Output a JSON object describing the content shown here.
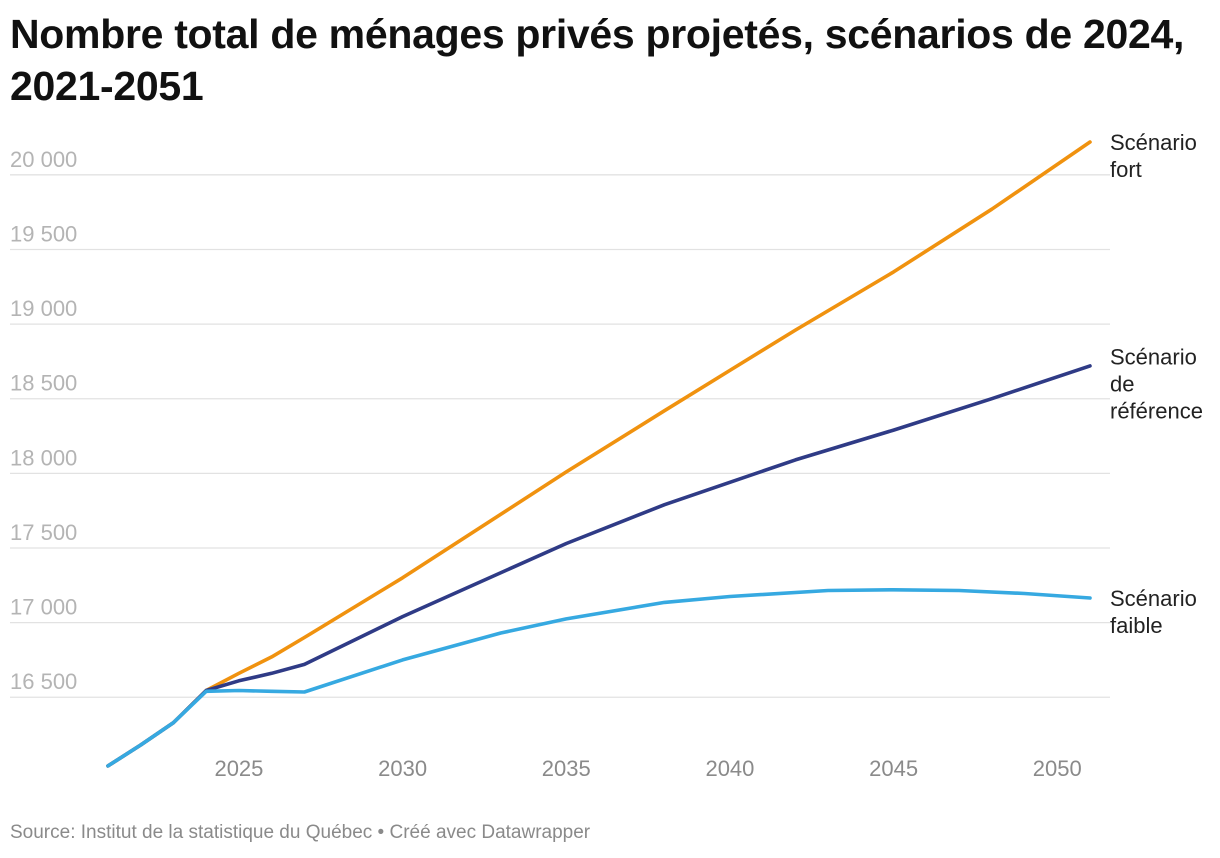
{
  "title": "Nombre total de ménages privés projetés, scénarios de 2024, 2021-2051",
  "source": "Source: Institut de la statistique du Québec • Créé avec Datawrapper",
  "chart_data": {
    "type": "line",
    "title": "Nombre total de ménages privés projetés, scénarios de 2024, 2021-2051",
    "xlabel": "",
    "ylabel": "",
    "xlim": [
      2021,
      2051
    ],
    "ylim": [
      16200,
      20220
    ],
    "grid": true,
    "x_ticks": [
      2025,
      2030,
      2035,
      2040,
      2045,
      2050
    ],
    "y_ticks": [
      16500,
      17000,
      17500,
      18000,
      18500,
      19000,
      19500,
      20000
    ],
    "x_tick_labels": [
      "2025",
      "2030",
      "2035",
      "2040",
      "2045",
      "2050"
    ],
    "y_tick_labels": [
      "16 500",
      "17 000",
      "17 500",
      "18 000",
      "18 500",
      "19 000",
      "19 500",
      "20 000"
    ],
    "series": [
      {
        "name": "Scénario fort",
        "label_lines": [
          "Scénario",
          "fort"
        ],
        "color": "#f0920f",
        "x": [
          2021,
          2022,
          2023,
          2024,
          2025,
          2026,
          2027,
          2030,
          2035,
          2038,
          2040,
          2042,
          2045,
          2048,
          2051
        ],
        "y": [
          16040,
          16180,
          16330,
          16545,
          16660,
          16770,
          16900,
          17300,
          18010,
          18420,
          18690,
          18960,
          19350,
          19770,
          20220
        ]
      },
      {
        "name": "Scénario de référence",
        "label_lines": [
          "Scénario",
          "de",
          "référence"
        ],
        "color": "#2f3b86",
        "x": [
          2021,
          2022,
          2023,
          2024,
          2025,
          2026,
          2027,
          2030,
          2035,
          2038,
          2040,
          2042,
          2045,
          2048,
          2051
        ],
        "y": [
          16040,
          16180,
          16330,
          16545,
          16610,
          16660,
          16720,
          17040,
          17530,
          17790,
          17940,
          18090,
          18290,
          18500,
          18720
        ]
      },
      {
        "name": "Scénario faible",
        "label_lines": [
          "Scénario",
          "faible"
        ],
        "color": "#36a9e1",
        "x": [
          2021,
          2022,
          2023,
          2024,
          2025,
          2026,
          2027,
          2030,
          2033,
          2035,
          2038,
          2040,
          2043,
          2045,
          2047,
          2049,
          2051
        ],
        "y": [
          16040,
          16180,
          16330,
          16540,
          16545,
          16540,
          16535,
          16750,
          16930,
          17025,
          17135,
          17175,
          17215,
          17220,
          17215,
          17195,
          17165
        ]
      }
    ]
  }
}
